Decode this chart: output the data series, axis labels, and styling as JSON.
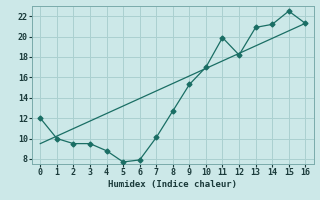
{
  "xlabel": "Humidex (Indice chaleur)",
  "ylabel": "",
  "bg_color": "#cce8e8",
  "grid_color": "#aad0d0",
  "line_color": "#1a6e64",
  "xlim": [
    -0.5,
    16.5
  ],
  "ylim": [
    7.5,
    23.0
  ],
  "xticks": [
    0,
    1,
    2,
    3,
    4,
    5,
    6,
    7,
    8,
    9,
    10,
    11,
    12,
    13,
    14,
    15,
    16
  ],
  "yticks": [
    8,
    10,
    12,
    14,
    16,
    18,
    20,
    22
  ],
  "series1_x": [
    0,
    1,
    2,
    3,
    4,
    5,
    6,
    7,
    8,
    9,
    10,
    11,
    12,
    13,
    14,
    15,
    16
  ],
  "series1_y": [
    12.0,
    10.0,
    9.5,
    9.5,
    8.8,
    7.7,
    7.9,
    10.1,
    12.7,
    15.3,
    17.0,
    19.9,
    18.2,
    20.9,
    21.2,
    22.5,
    21.3
  ],
  "series2_x": [
    0,
    16
  ],
  "series2_y": [
    9.5,
    21.3
  ],
  "xlabel_fontsize": 6.5,
  "tick_fontsize": 6
}
